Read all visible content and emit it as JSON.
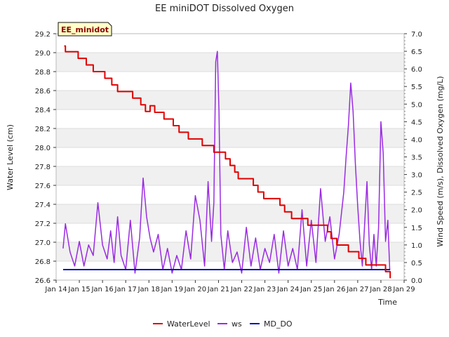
{
  "chart_data": {
    "type": "line",
    "title": "EE miniDOT Dissolved Oxygen",
    "badge": "EE_minidot",
    "xlabel": "Time",
    "ylabel_left": "Water Level (cm)",
    "ylabel_right": "Wind Speed (m/s), Dissolved Oxygen (mg/L)",
    "x_ticks": [
      "Jan 14",
      "Jan 15",
      "Jan 16",
      "Jan 17",
      "Jan 18",
      "Jan 19",
      "Jan 20",
      "Jan 21",
      "Jan 22",
      "Jan 23",
      "Jan 24",
      "Jan 25",
      "Jan 26",
      "Jan 27",
      "Jan 28",
      "Jan 29"
    ],
    "xlim": [
      14,
      29
    ],
    "ylim_left": [
      26.6,
      29.2
    ],
    "ylim_right": [
      0.0,
      7.0
    ],
    "y_ticks_left": [
      "26.6",
      "26.8",
      "27.0",
      "27.2",
      "27.4",
      "27.6",
      "27.8",
      "28.0",
      "28.2",
      "28.4",
      "28.6",
      "28.8",
      "29.0",
      "29.2"
    ],
    "y_ticks_right": [
      "0.0",
      "0.5",
      "1.0",
      "1.5",
      "2.0",
      "2.5",
      "3.0",
      "3.5",
      "4.0",
      "4.5",
      "5.0",
      "5.5",
      "6.0",
      "6.5",
      "7.0"
    ],
    "grid": "horizontal bands",
    "legend_placement": "bottom-center",
    "series": [
      {
        "name": "WaterLevel",
        "axis": "left",
        "color": "#e00000",
        "x": [
          14.35,
          14.4,
          14.95,
          15.3,
          15.6,
          16.1,
          16.4,
          16.65,
          17.3,
          17.65,
          17.85,
          18.05,
          18.25,
          18.65,
          19.05,
          19.3,
          19.7,
          20.3,
          20.8,
          21.3,
          21.5,
          21.7,
          21.85,
          22.05,
          22.5,
          22.7,
          22.95,
          23.65,
          23.85,
          24.15,
          24.85,
          25.7,
          25.85,
          26.1,
          26.6,
          27.05,
          27.35,
          27.65,
          28.2,
          28.4
        ],
        "y": [
          29.07,
          29.01,
          28.94,
          28.87,
          28.8,
          28.73,
          28.66,
          28.59,
          28.52,
          28.45,
          28.38,
          28.44,
          28.37,
          28.3,
          28.23,
          28.16,
          28.09,
          28.02,
          27.95,
          27.88,
          27.81,
          27.74,
          27.67,
          27.67,
          27.6,
          27.53,
          27.46,
          27.39,
          27.32,
          27.25,
          27.18,
          27.11,
          27.04,
          26.97,
          26.9,
          26.83,
          26.76,
          26.76,
          26.69,
          26.62
        ]
      },
      {
        "name": "ws",
        "axis": "right",
        "color": "#9a2be2",
        "x": [
          14.3,
          14.4,
          14.6,
          14.8,
          15.0,
          15.2,
          15.4,
          15.6,
          15.8,
          16.0,
          16.2,
          16.35,
          16.5,
          16.65,
          16.8,
          17.0,
          17.2,
          17.4,
          17.6,
          17.75,
          17.9,
          18.05,
          18.2,
          18.4,
          18.6,
          18.8,
          19.0,
          19.2,
          19.4,
          19.6,
          19.8,
          20.0,
          20.2,
          20.4,
          20.55,
          20.7,
          20.8,
          20.88,
          20.95,
          21.02,
          21.1,
          21.25,
          21.4,
          21.6,
          21.8,
          22.0,
          22.2,
          22.4,
          22.6,
          22.8,
          23.0,
          23.2,
          23.4,
          23.6,
          23.8,
          24.0,
          24.2,
          24.4,
          24.6,
          24.8,
          25.0,
          25.2,
          25.4,
          25.6,
          25.8,
          26.0,
          26.2,
          26.4,
          26.5,
          26.6,
          26.7,
          26.8,
          26.9,
          27.0,
          27.1,
          27.2,
          27.3,
          27.4,
          27.5,
          27.6,
          27.7,
          27.8,
          27.9,
          28.0,
          28.1,
          28.2,
          28.3,
          28.38
        ],
        "y": [
          0.9,
          1.6,
          0.8,
          0.4,
          1.1,
          0.4,
          1.0,
          0.7,
          2.2,
          1.0,
          0.6,
          1.4,
          0.5,
          1.8,
          0.7,
          0.3,
          1.7,
          0.2,
          1.2,
          2.9,
          1.8,
          1.2,
          0.8,
          1.3,
          0.3,
          0.9,
          0.2,
          0.7,
          0.3,
          1.4,
          0.6,
          2.4,
          1.7,
          0.4,
          2.8,
          1.1,
          2.2,
          6.2,
          6.5,
          4.8,
          1.3,
          0.3,
          1.4,
          0.5,
          0.8,
          0.2,
          1.5,
          0.4,
          1.2,
          0.3,
          0.9,
          0.5,
          1.3,
          0.2,
          1.4,
          0.4,
          0.9,
          0.3,
          2.0,
          0.4,
          1.7,
          0.5,
          2.6,
          1.1,
          1.8,
          0.6,
          1.3,
          2.5,
          3.5,
          4.4,
          5.6,
          4.8,
          3.3,
          2.1,
          1.1,
          0.4,
          1.6,
          2.8,
          1.0,
          0.3,
          1.3,
          0.4,
          1.5,
          4.5,
          3.6,
          1.1,
          1.7,
          0.3
        ]
      },
      {
        "name": "MD_DO",
        "axis": "right",
        "color": "#0010c0",
        "x": [
          14.3,
          28.4
        ],
        "y": [
          0.3,
          0.3
        ]
      }
    ]
  }
}
